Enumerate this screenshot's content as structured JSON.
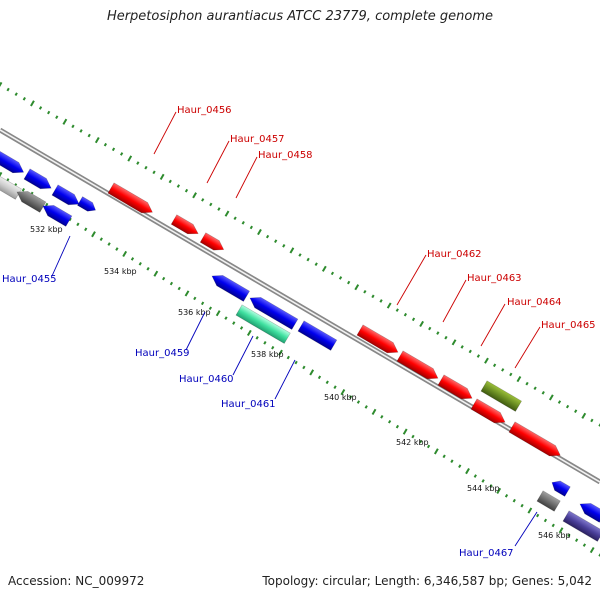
{
  "title": "Herpetosiphon aurantiacus ATCC 23779, complete genome",
  "footer": {
    "accession": "Accession: NC_009972",
    "summary": "Topology: circular; Length: 6,346,587 bp; Genes: 5,042"
  },
  "ticks": [
    "532 kbp",
    "534 kbp",
    "536 kbp",
    "538 kbp",
    "540 kbp",
    "542 kbp",
    "544 kbp",
    "546 kbp"
  ],
  "forward_gene_labels": [
    "Haur_0456",
    "Haur_0457",
    "Haur_0458",
    "Haur_0462",
    "Haur_0463",
    "Haur_0464",
    "Haur_0465"
  ],
  "reverse_gene_labels": [
    "Haur_0455",
    "Haur_0459",
    "Haur_0460",
    "Haur_0461",
    "Haur_0467"
  ],
  "colors": {
    "forward_gene": "#ff0000",
    "reverse_gene": "#0000ee",
    "forward_label": "#cc0000",
    "reverse_label": "#0000bb",
    "backbone": "#808080",
    "tick_marks": "#2e8b2e",
    "highlight_gene_green": "#40e0a0",
    "highlight_gene_olive": "#6b8e23",
    "grey_gene": "#707070",
    "purple_gene": "#4a3f9a"
  }
}
